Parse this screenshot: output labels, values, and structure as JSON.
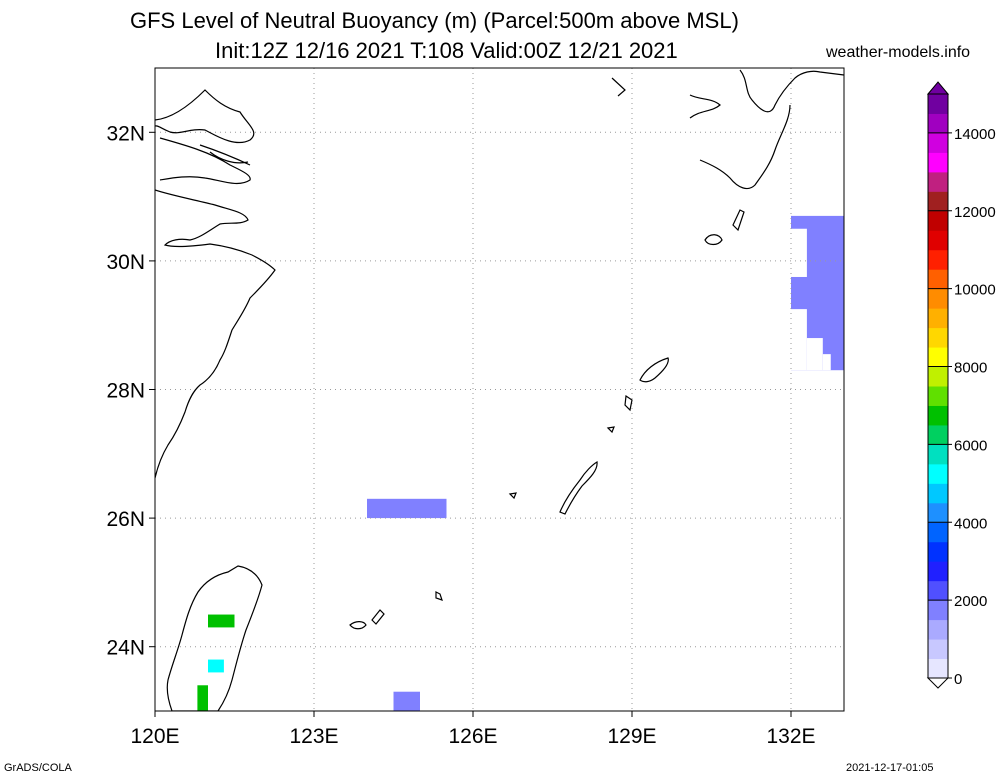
{
  "title": {
    "line1": "GFS Level of Neutral Buoyancy (m) (Parcel:500m above MSL)",
    "line2": "Init:12Z 12/16 2021 T:108 Valid:00Z 12/21 2021"
  },
  "site": "weather-models.info",
  "footer": {
    "left": "GrADS/COLA",
    "right": "2021-12-17-01:05"
  },
  "map": {
    "lon_range": [
      120,
      133
    ],
    "lat_range": [
      23,
      33
    ],
    "grid": true,
    "lat_ticks": [
      {
        "value": 32,
        "label": "32N"
      },
      {
        "value": 30,
        "label": "30N"
      },
      {
        "value": 28,
        "label": "28N"
      },
      {
        "value": 26,
        "label": "26N"
      },
      {
        "value": 24,
        "label": "24N"
      }
    ],
    "lon_ticks": [
      {
        "value": 120,
        "label": "120E"
      },
      {
        "value": 123,
        "label": "123E"
      },
      {
        "value": 126,
        "label": "126E"
      },
      {
        "value": 129,
        "label": "129E"
      },
      {
        "value": 132,
        "label": "132E"
      }
    ]
  },
  "colorbar": {
    "range": [
      0,
      15000
    ],
    "labels": [
      {
        "value": 0,
        "label": "0"
      },
      {
        "value": 2000,
        "label": "2000"
      },
      {
        "value": 4000,
        "label": "4000"
      },
      {
        "value": 6000,
        "label": "6000"
      },
      {
        "value": 8000,
        "label": "8000"
      },
      {
        "value": 10000,
        "label": "10000"
      },
      {
        "value": 12000,
        "label": "12000"
      },
      {
        "value": 14000,
        "label": "14000"
      }
    ],
    "colors": [
      "#e6e6ff",
      "#c8c8ff",
      "#aaaaff",
      "#8080ff",
      "#5050ff",
      "#2020ff",
      "#0032ff",
      "#0064ff",
      "#1e90ff",
      "#00c8ff",
      "#00ffff",
      "#00e0c0",
      "#00d060",
      "#00c000",
      "#60e000",
      "#c0f000",
      "#ffff00",
      "#ffd700",
      "#ffb000",
      "#ff8c00",
      "#ff6000",
      "#ff2000",
      "#e00000",
      "#c00000",
      "#a02020",
      "#c02080",
      "#ff00ff",
      "#d000e0",
      "#a000c0",
      "#7000a0"
    ]
  },
  "colors": {
    "lnb_fill": "#1a3cff",
    "coast": "#000000",
    "grid": "#9a9a9a"
  },
  "fields": [
    {
      "name": "east-block",
      "lon": [
        132,
        133
      ],
      "lat": [
        28.3,
        30.7
      ],
      "value_m": 1800
    },
    {
      "name": "central-block",
      "lon": [
        124,
        125.5
      ],
      "lat": [
        26,
        26.3
      ],
      "value_m": 1900
    },
    {
      "name": "south-block",
      "lon": [
        124.5,
        125
      ],
      "lat": [
        23,
        23.3
      ],
      "value_m": 1900
    },
    {
      "name": "taiwan-north",
      "lon": [
        121,
        121.5
      ],
      "lat": [
        24.3,
        24.5
      ],
      "value_m": 6500
    },
    {
      "name": "taiwan-mid",
      "lon": [
        121,
        121.3
      ],
      "lat": [
        23.6,
        23.8
      ],
      "value_m": 5000
    },
    {
      "name": "taiwan-south",
      "lon": [
        120.8,
        121
      ],
      "lat": [
        23,
        23.4
      ],
      "value_m": 6500
    }
  ]
}
